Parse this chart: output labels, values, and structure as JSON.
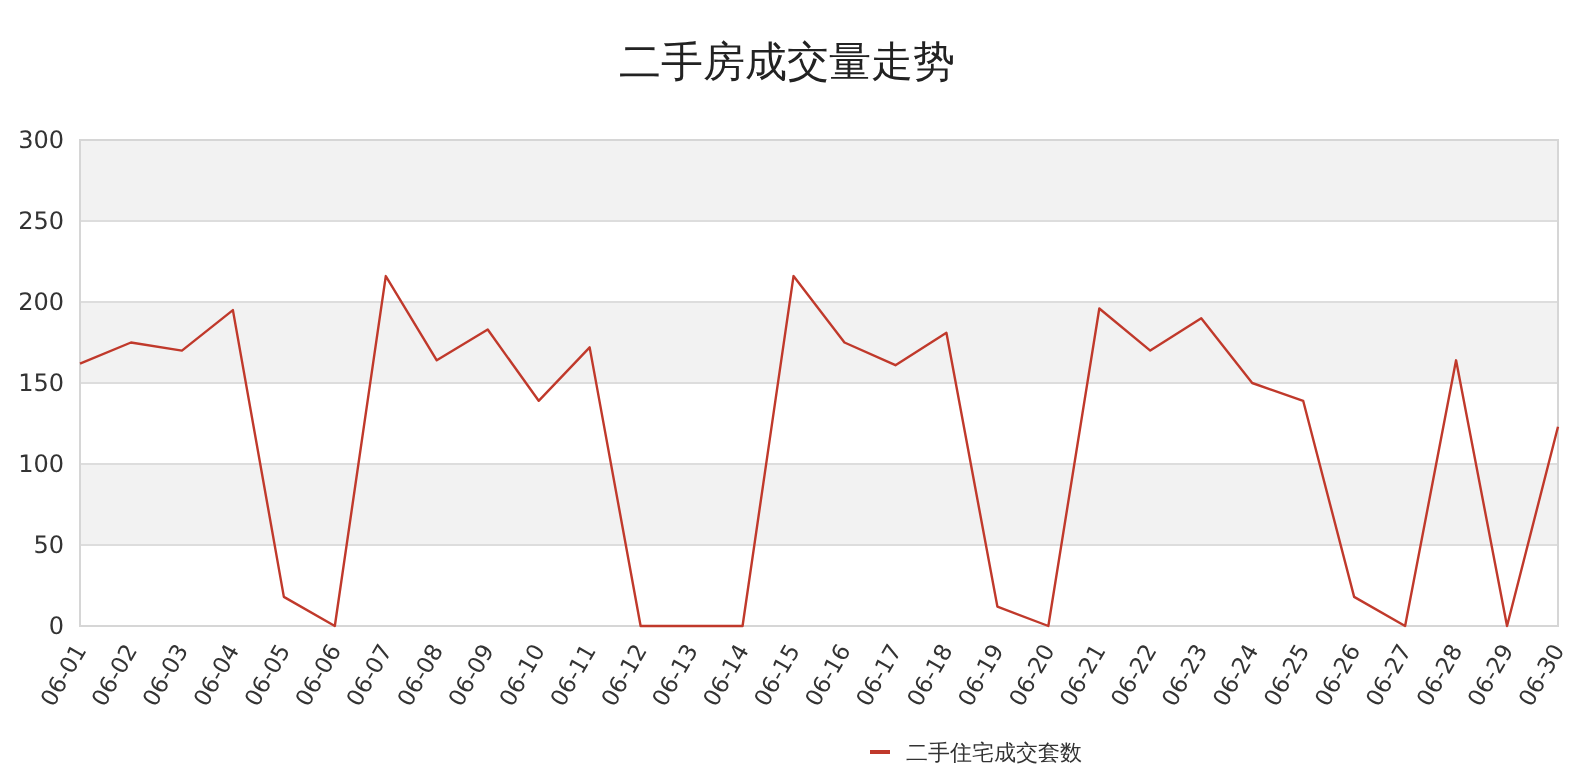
{
  "chart_data": {
    "type": "line",
    "title": "二手房成交量走势",
    "categories": [
      "06-01",
      "06-02",
      "06-03",
      "06-04",
      "06-05",
      "06-06",
      "06-07",
      "06-08",
      "06-09",
      "06-10",
      "06-11",
      "06-12",
      "06-13",
      "06-14",
      "06-15",
      "06-16",
      "06-17",
      "06-18",
      "06-19",
      "06-20",
      "06-21",
      "06-22",
      "06-23",
      "06-24",
      "06-25",
      "06-26",
      "06-27",
      "06-28",
      "06-29",
      "06-30"
    ],
    "series": [
      {
        "name": "二手住宅成交套数",
        "color": "#c0392b",
        "values": [
          162,
          175,
          170,
          195,
          18,
          0,
          216,
          164,
          183,
          139,
          172,
          0,
          0,
          0,
          216,
          175,
          161,
          181,
          12,
          0,
          196,
          170,
          190,
          150,
          139,
          18,
          0,
          164,
          0,
          123
        ]
      }
    ],
    "ylim": [
      0,
      300
    ],
    "yticks": [
      0,
      50,
      100,
      150,
      200,
      250,
      300
    ],
    "grid": "y",
    "legend": "bottom",
    "marker": "none",
    "line_style": "solid"
  }
}
